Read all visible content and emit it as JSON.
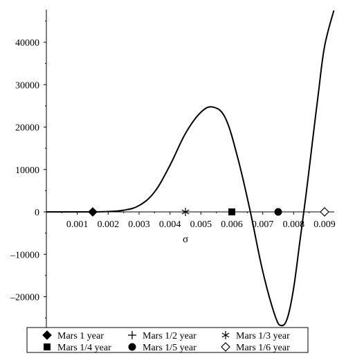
{
  "chart_data": {
    "type": "line",
    "xlabel": "σ",
    "ylabel": "",
    "xlim": [
      0,
      0.0093
    ],
    "ylim": [
      -27000,
      47500
    ],
    "x_ticks": [
      0.001,
      0.002,
      0.003,
      0.004,
      0.005,
      0.006,
      0.007,
      0.008,
      0.009
    ],
    "x_tick_labels": [
      "0.001",
      "0.002",
      "0.003",
      "0.004",
      "0.005",
      "0.006",
      "0.007",
      "0.008",
      "0.009"
    ],
    "y_ticks": [
      40000,
      30000,
      20000,
      10000,
      0,
      -10000,
      -20000
    ],
    "y_tick_labels": [
      "40000",
      "30000",
      "20000",
      "10000",
      "0",
      "–10000",
      "–20000"
    ],
    "grid": false,
    "legend_position": "bottom",
    "curve": {
      "x": [
        0,
        0.001,
        0.0015,
        0.002,
        0.0025,
        0.003,
        0.0035,
        0.004,
        0.0045,
        0.005,
        0.0054,
        0.0058,
        0.0062,
        0.0066,
        0.007,
        0.0074,
        0.0076,
        0.0078,
        0.008,
        0.0082,
        0.0084,
        0.0086,
        0.0088,
        0.009,
        0.0093
      ],
      "y": [
        0,
        0,
        5,
        80,
        400,
        1500,
        4700,
        11000,
        18500,
        23500,
        24700,
        22000,
        12500,
        0,
        -14000,
        -24500,
        -26800,
        -25000,
        -18000,
        -7000,
        4000,
        16000,
        28000,
        39000,
        47500
      ]
    },
    "markers": [
      {
        "name": "Mars 1 year",
        "symbol": "diamond-filled",
        "x": 0.0015,
        "y": 0
      },
      {
        "name": "Mars 1/2 year",
        "symbol": "plus",
        "x": null,
        "y": null
      },
      {
        "name": "Mars 1/3 year",
        "symbol": "star",
        "x": 0.0045,
        "y": 0
      },
      {
        "name": "Mars 1/4 year",
        "symbol": "square-filled",
        "x": 0.006,
        "y": 0
      },
      {
        "name": "Mars 1/5 year",
        "symbol": "circle-filled",
        "x": 0.0075,
        "y": 0
      },
      {
        "name": "Mars 1/6 year",
        "symbol": "diamond-open",
        "x": 0.009,
        "y": 0
      }
    ],
    "line_color": "#000000"
  }
}
